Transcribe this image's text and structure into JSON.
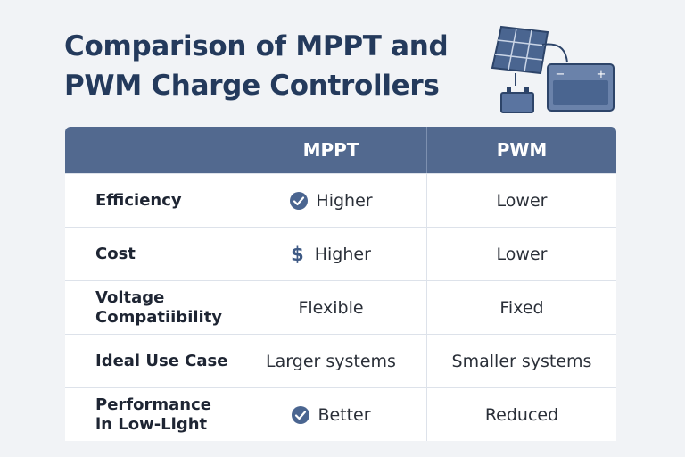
{
  "title": {
    "line1": "Comparison of MPPT and",
    "line2": "PWM Charge Controllers"
  },
  "table": {
    "headers": [
      "",
      "MPPT",
      "PWM"
    ],
    "rows": [
      {
        "label": "Efficiency",
        "mppt": "Higher",
        "mppt_icon": "check-circle-icon",
        "pwm": "Lower"
      },
      {
        "label": "Cost",
        "mppt": "Higher",
        "mppt_icon": "dollar-icon",
        "pwm": "Lower"
      },
      {
        "label": "Voltage Compatiibility",
        "mppt": "Flexible",
        "pwm": "Fixed"
      },
      {
        "label": "Ideal Use Case",
        "mppt": "Larger systems",
        "pwm": "Smaller systems"
      },
      {
        "label": "Performance in Low-Light",
        "mppt": "Better",
        "mppt_icon": "check-circle-icon",
        "pwm": "Reduced"
      }
    ]
  },
  "illustration": {
    "icons": [
      "solar-panel-icon",
      "battery-icon",
      "charge-controller-icon"
    ],
    "battery_minus": "−",
    "battery_plus": "+"
  },
  "colors": {
    "header_bg": "#52698f",
    "title": "#243a5c",
    "icon_accent": "#4a6590"
  }
}
